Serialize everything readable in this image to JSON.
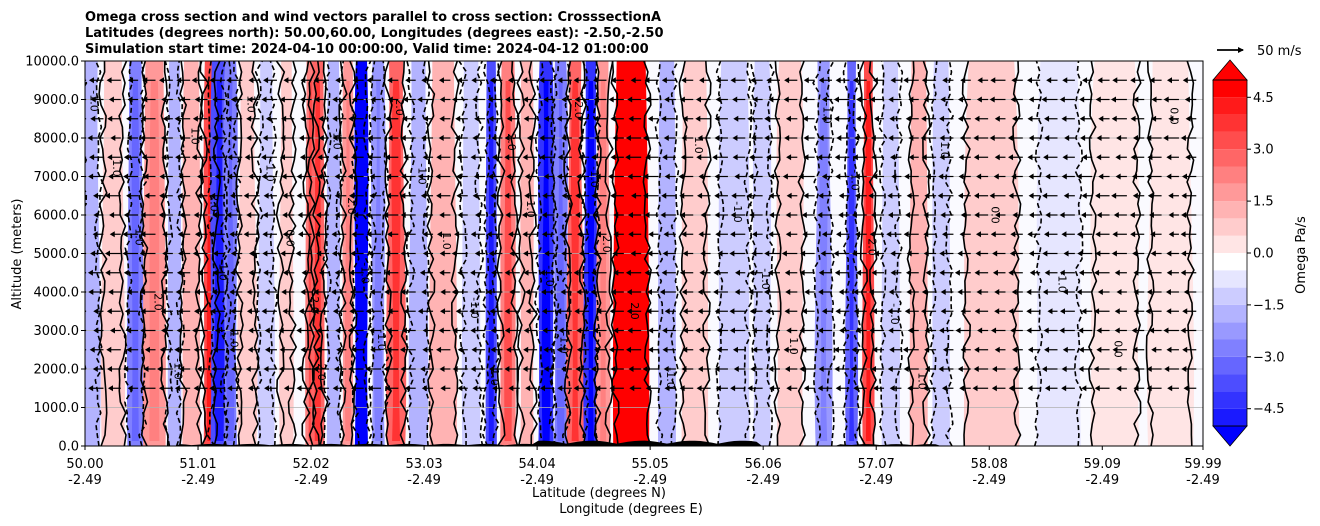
{
  "chart_data": {
    "type": "heatmap",
    "title_lines": [
      "Omega cross section and wind vectors parallel to cross section: CrosssectionA",
      "Latitudes (degrees north): 50.00,60.00, Longitudes (degrees east): -2.50,-2.50",
      "Simulation start time: 2024-04-10 00:00:00, Valid time: 2024-04-12 01:00:00"
    ],
    "ylabel": "Altitude (meters)",
    "xlabel_lat": "Latitude (degrees N)",
    "xlabel_lon": "Longitude (degrees E)",
    "xlim": [
      50.0,
      59.99
    ],
    "ylim": [
      0,
      10000
    ],
    "grid": "horizontal",
    "y_ticks": [
      0,
      1000,
      2000,
      3000,
      4000,
      5000,
      6000,
      7000,
      8000,
      9000,
      10000
    ],
    "y_tick_labels": [
      "0.0",
      "1000.0",
      "2000.0",
      "3000.0",
      "4000.0",
      "5000.0",
      "6000.0",
      "7000.0",
      "8000.0",
      "9000.0",
      "10000.0"
    ],
    "x_ticks": [
      {
        "lat": "50.00",
        "lon": "-2.49"
      },
      {
        "lat": "51.01",
        "lon": "-2.49"
      },
      {
        "lat": "52.02",
        "lon": "-2.49"
      },
      {
        "lat": "53.03",
        "lon": "-2.49"
      },
      {
        "lat": "54.04",
        "lon": "-2.49"
      },
      {
        "lat": "55.05",
        "lon": "-2.49"
      },
      {
        "lat": "56.06",
        "lon": "-2.49"
      },
      {
        "lat": "57.07",
        "lon": "-2.49"
      },
      {
        "lat": "58.08",
        "lon": "-2.49"
      },
      {
        "lat": "59.09",
        "lon": "-2.49"
      },
      {
        "lat": "59.99",
        "lon": "-2.49"
      }
    ],
    "colorbar": {
      "label": "Omega Pa/s",
      "min": -5.0,
      "max": 5.0,
      "extend": "both",
      "ticks": [
        4.5,
        3.0,
        1.5,
        0.0,
        -1.5,
        -3.0,
        -4.5
      ],
      "tick_labels": [
        "4.5",
        "3.0",
        "1.5",
        "0.0",
        "−1.5",
        "−3.0",
        "−4.5"
      ]
    },
    "quiver_key": {
      "label": "50 m/s",
      "speed_ms": 50
    },
    "contour_levels": [
      -1.0,
      0.0,
      1.0,
      2.0
    ],
    "omega_bands": [
      {
        "lat": 50.05,
        "width": 0.08,
        "value": -1.5
      },
      {
        "lat": 50.25,
        "width": 0.1,
        "value": 1.2
      },
      {
        "lat": 50.45,
        "width": 0.07,
        "value": -2.5
      },
      {
        "lat": 50.62,
        "width": 0.1,
        "value": 2.0
      },
      {
        "lat": 50.8,
        "width": 0.06,
        "value": -1.5
      },
      {
        "lat": 50.95,
        "width": 0.08,
        "value": 1.5
      },
      {
        "lat": 51.12,
        "width": 0.06,
        "value": 3.5
      },
      {
        "lat": 51.2,
        "width": 0.08,
        "value": -3.5
      },
      {
        "lat": 51.3,
        "width": 0.06,
        "value": -2.5
      },
      {
        "lat": 51.45,
        "width": 0.08,
        "value": 1.2
      },
      {
        "lat": 51.62,
        "width": 0.07,
        "value": -1.2
      },
      {
        "lat": 51.8,
        "width": 0.06,
        "value": 0.8
      },
      {
        "lat": 52.02,
        "width": 0.05,
        "value": 2.5
      },
      {
        "lat": 52.08,
        "width": 0.06,
        "value": 3.0
      },
      {
        "lat": 52.22,
        "width": 0.06,
        "value": -1.5
      },
      {
        "lat": 52.35,
        "width": 0.05,
        "value": 2.0
      },
      {
        "lat": 52.47,
        "width": 0.06,
        "value": -5.0
      },
      {
        "lat": 52.62,
        "width": 0.06,
        "value": -2.0
      },
      {
        "lat": 52.78,
        "width": 0.08,
        "value": 3.0
      },
      {
        "lat": 52.98,
        "width": 0.08,
        "value": -1.5
      },
      {
        "lat": 53.2,
        "width": 0.12,
        "value": 1.5
      },
      {
        "lat": 53.45,
        "width": 0.08,
        "value": -1.0
      },
      {
        "lat": 53.63,
        "width": 0.05,
        "value": -3.5
      },
      {
        "lat": 53.78,
        "width": 0.07,
        "value": 2.5
      },
      {
        "lat": 53.95,
        "width": 0.06,
        "value": 1.5
      },
      {
        "lat": 54.12,
        "width": 0.07,
        "value": -4.0
      },
      {
        "lat": 54.25,
        "width": 0.06,
        "value": -2.5
      },
      {
        "lat": 54.38,
        "width": 0.07,
        "value": 3.0
      },
      {
        "lat": 54.52,
        "width": 0.06,
        "value": -4.0
      },
      {
        "lat": 54.63,
        "width": 0.06,
        "value": 2.0
      },
      {
        "lat": 54.88,
        "width": 0.16,
        "value": 5.0
      },
      {
        "lat": 55.2,
        "width": 0.08,
        "value": -1.5
      },
      {
        "lat": 55.45,
        "width": 0.12,
        "value": 1.2
      },
      {
        "lat": 55.8,
        "width": 0.14,
        "value": -1.2
      },
      {
        "lat": 56.05,
        "width": 0.08,
        "value": -0.8
      },
      {
        "lat": 56.3,
        "width": 0.12,
        "value": 1.0
      },
      {
        "lat": 56.6,
        "width": 0.07,
        "value": -2.0
      },
      {
        "lat": 56.85,
        "width": 0.05,
        "value": -3.0
      },
      {
        "lat": 57.0,
        "width": 0.05,
        "value": 3.5
      },
      {
        "lat": 57.2,
        "width": 0.08,
        "value": -0.8
      },
      {
        "lat": 57.45,
        "width": 0.08,
        "value": 1.5
      },
      {
        "lat": 57.65,
        "width": 0.08,
        "value": -1.0
      },
      {
        "lat": 58.1,
        "width": 0.25,
        "value": 0.8
      },
      {
        "lat": 58.7,
        "width": 0.2,
        "value": -0.6
      },
      {
        "lat": 59.2,
        "width": 0.22,
        "value": 0.7
      },
      {
        "lat": 59.7,
        "width": 0.2,
        "value": 0.5
      }
    ],
    "wind_vectors": {
      "direction": "southward (leftward along section)",
      "typical_speed_ms": 40,
      "spacing_lat": 0.155
    },
    "terrain_note": "Black terrain at base, highest near 54.5-55.8 N"
  }
}
